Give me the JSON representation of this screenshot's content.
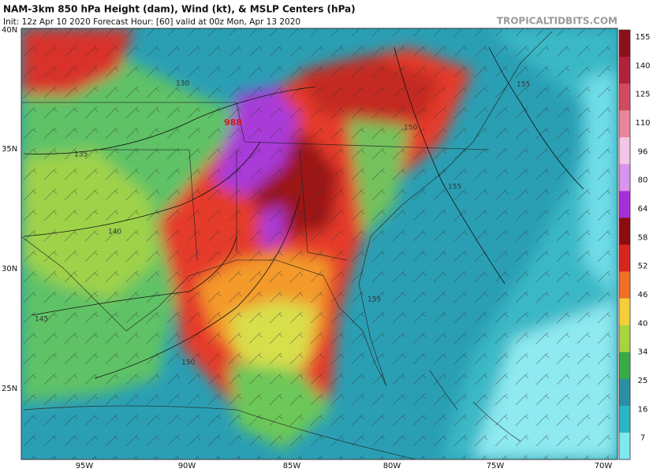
{
  "header": {
    "title": "NAM-3km 850 hPa Height (dam), Wind (kt), & MSLP Centers (hPa)",
    "subtitle": "Init: 12z Apr 10 2020   Forecast Hour: [60]   valid at 00z Mon, Apr 13 2020",
    "watermark": "TROPICALTIDBITS.COM"
  },
  "latitude_labels": [
    "40N",
    "35N",
    "30N",
    "25N"
  ],
  "longitude_labels": [
    "95W",
    "90W",
    "85W",
    "80W",
    "75W",
    "70W"
  ],
  "colorbar_labels": [
    "155",
    "140",
    "125",
    "110",
    "96",
    "80",
    "64",
    "58",
    "52",
    "46",
    "40",
    "34",
    "25",
    "16",
    "7"
  ],
  "contour_labels": [
    "135",
    "130",
    "140",
    "145",
    "150",
    "150",
    "155",
    "155",
    "155"
  ],
  "pressure_center": "988"
}
